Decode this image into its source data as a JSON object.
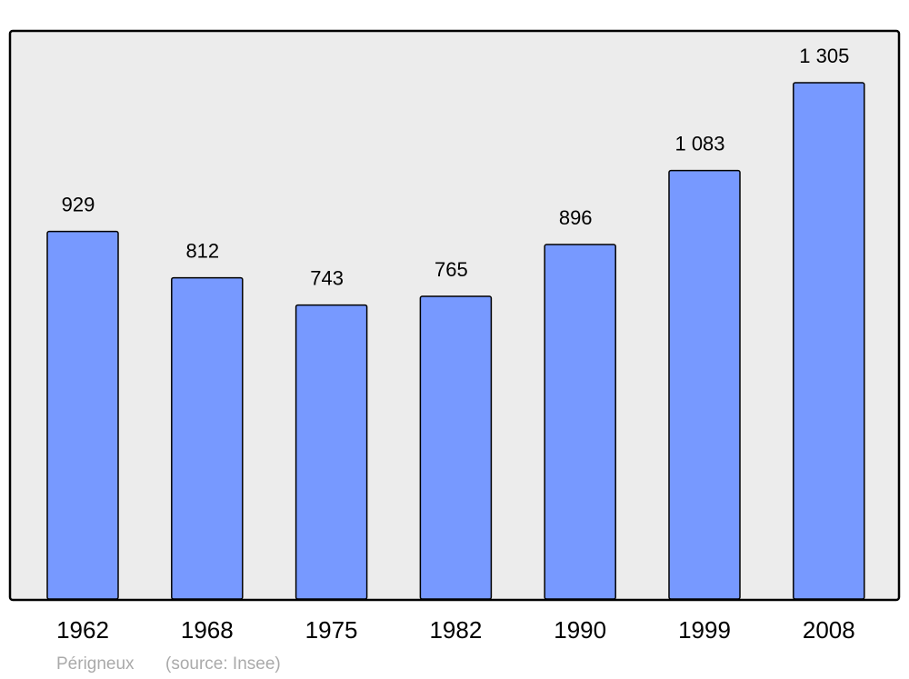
{
  "chart_data": {
    "type": "bar",
    "categories": [
      "1962",
      "1968",
      "1975",
      "1982",
      "1990",
      "1999",
      "2008"
    ],
    "values": [
      929,
      812,
      743,
      765,
      896,
      1083,
      1305
    ],
    "value_labels": [
      "929",
      "812",
      "743",
      "765",
      "896",
      "1 083",
      "1 305"
    ],
    "color": "#7799ff",
    "ylim": [
      0,
      1436
    ],
    "caption": "Périgneux",
    "source": "(source: Insee)"
  }
}
